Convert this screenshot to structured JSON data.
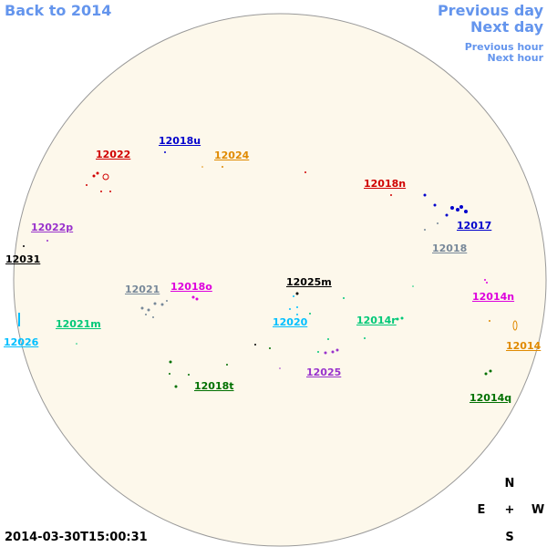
{
  "navigation": {
    "back": "Back to 2014",
    "previous_day": "Previous day",
    "next_day": "Next day",
    "previous_hour": "Previous hour",
    "next_hour": "Next hour"
  },
  "regions": [
    "12022",
    "12018u",
    "12024",
    "12018n",
    "12017",
    "12018",
    "12022p",
    "12031",
    "12021",
    "12018o",
    "12025m",
    "12020",
    "12014r",
    "12014n",
    "12021m",
    "12026",
    "12014",
    "12025",
    "12018t",
    "12014q"
  ],
  "compass": {
    "north": "N",
    "east": "E",
    "center": "+",
    "west": "W",
    "south": "S"
  },
  "timestamp": "2014-03-30T15:00:31"
}
